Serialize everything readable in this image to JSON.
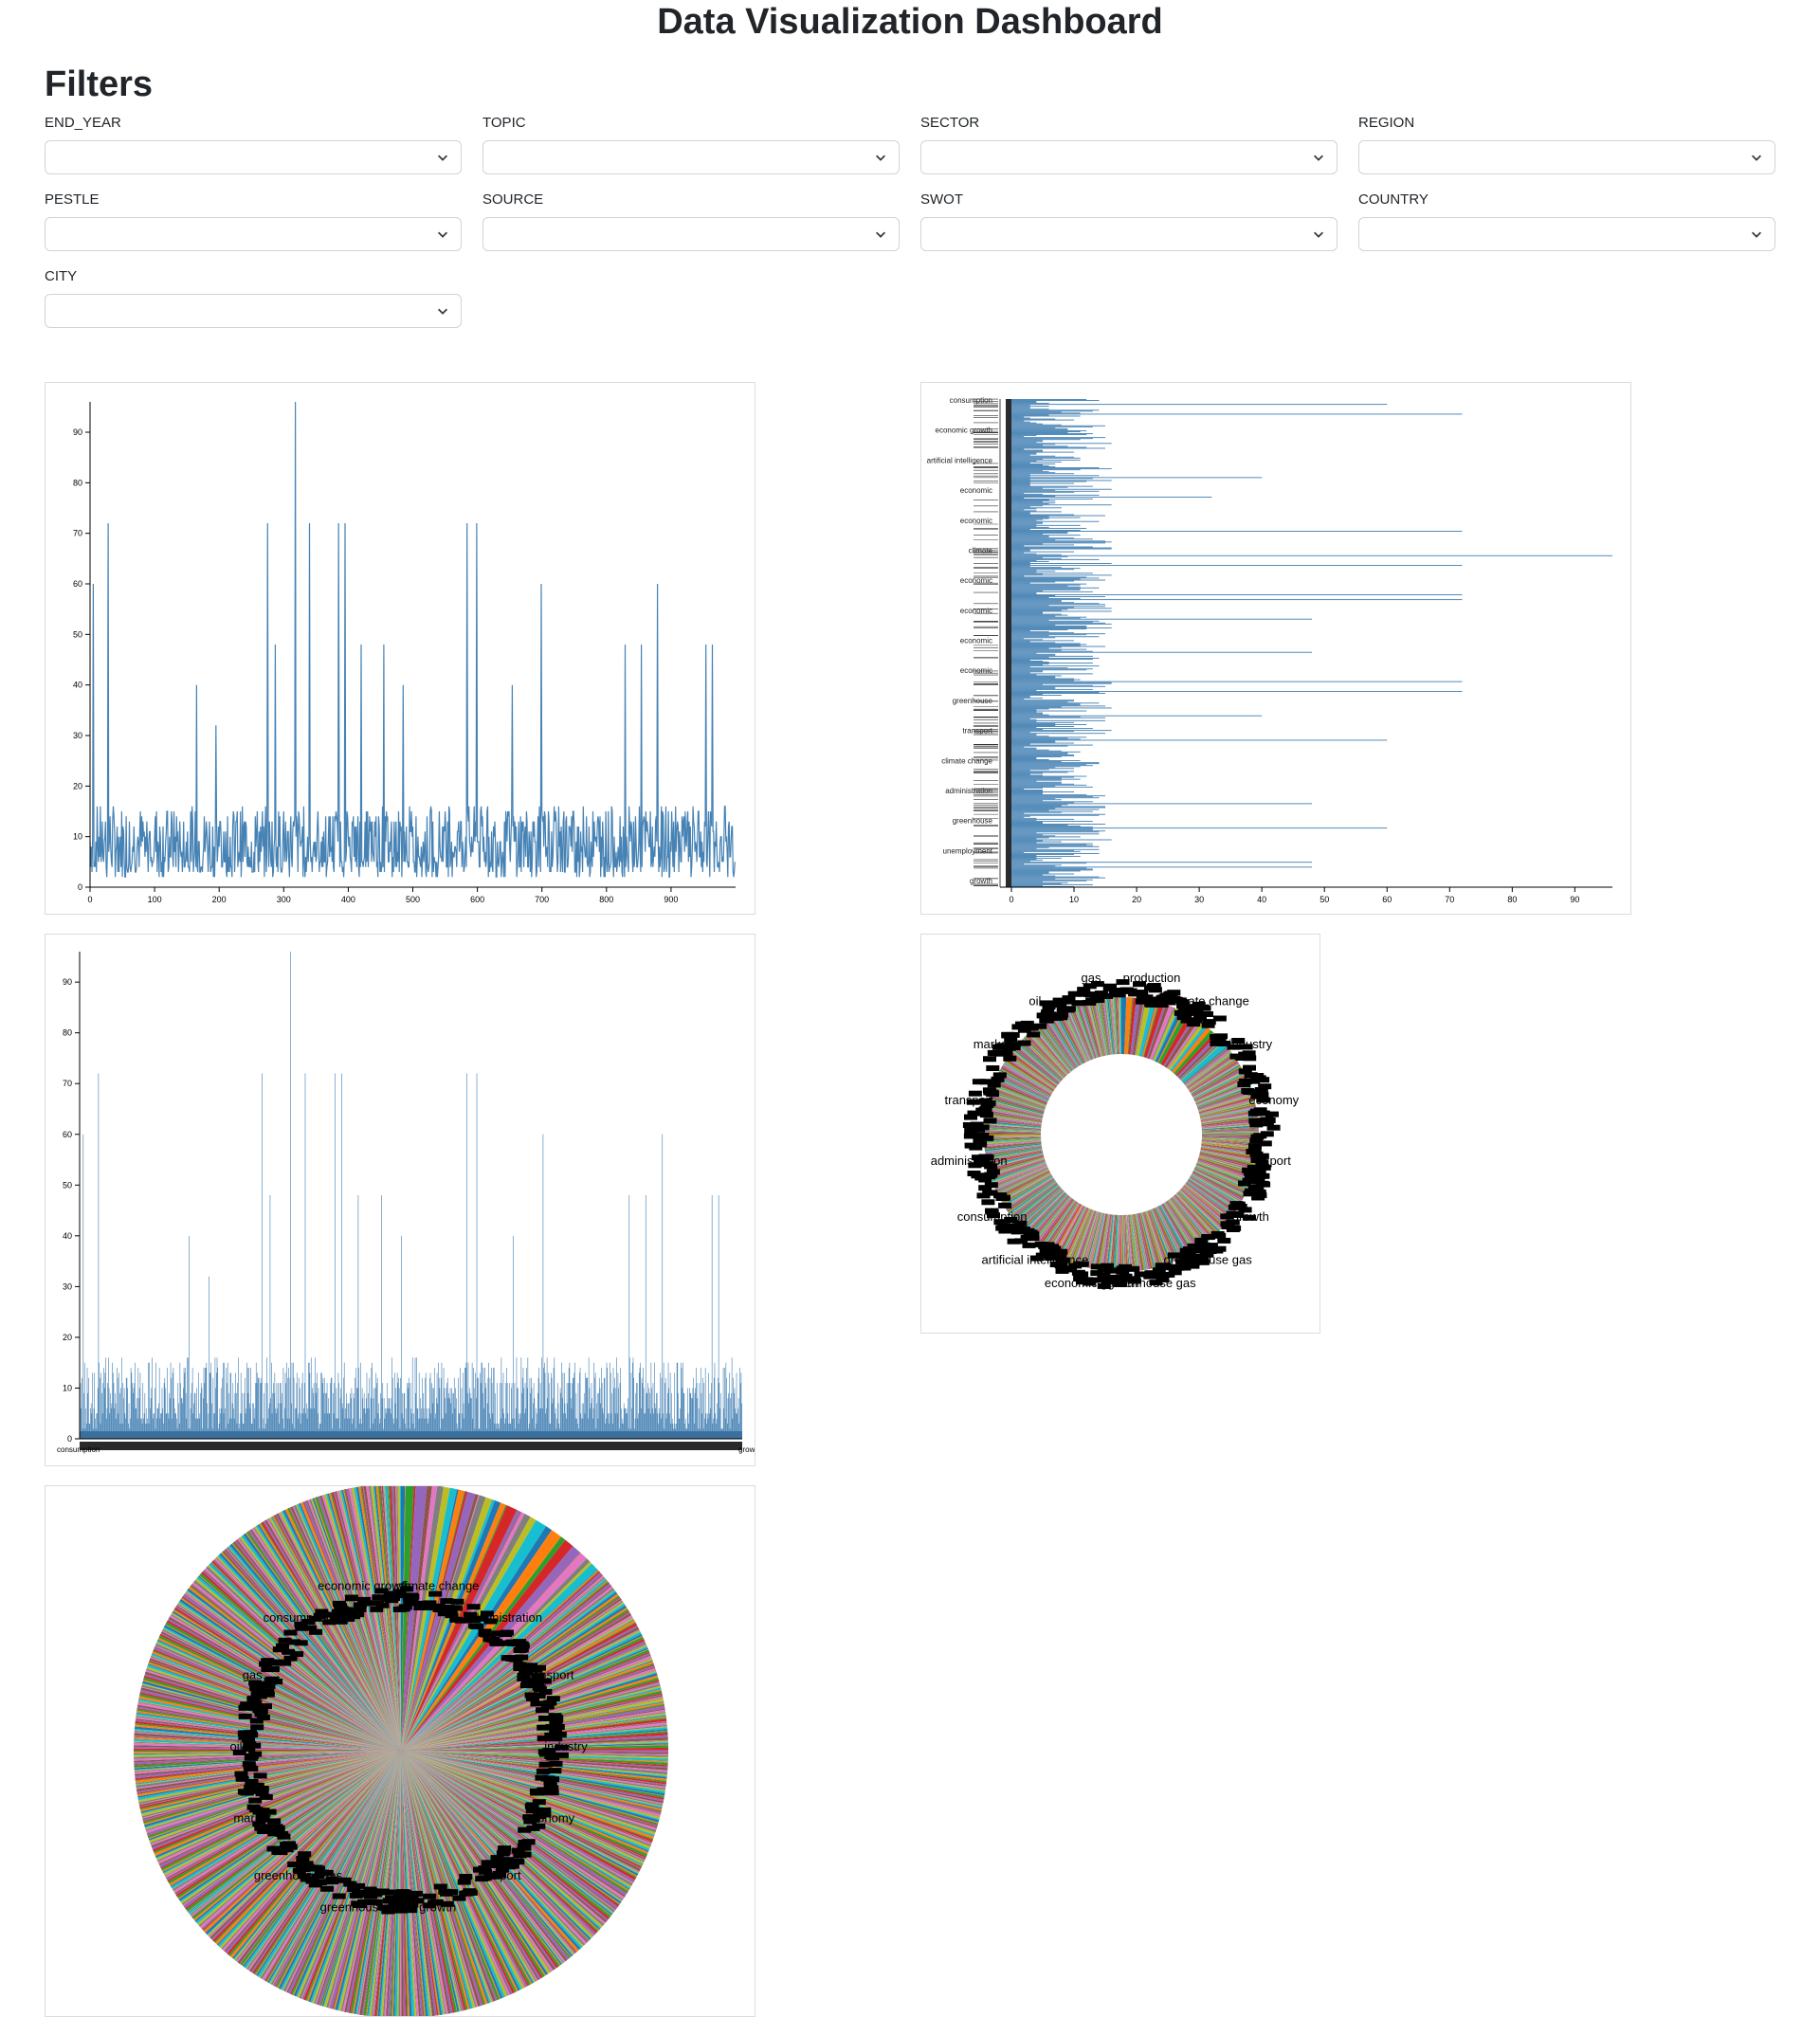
{
  "header": {
    "title": "Data Visualization Dashboard"
  },
  "filters": {
    "heading": "Filters",
    "fields": [
      {
        "label": "END_YEAR",
        "value": ""
      },
      {
        "label": "TOPIC",
        "value": ""
      },
      {
        "label": "SECTOR",
        "value": ""
      },
      {
        "label": "REGION",
        "value": ""
      },
      {
        "label": "PESTLE",
        "value": ""
      },
      {
        "label": "SOURCE",
        "value": ""
      },
      {
        "label": "SWOT",
        "value": ""
      },
      {
        "label": "COUNTRY",
        "value": ""
      },
      {
        "label": "CITY",
        "value": ""
      }
    ]
  },
  "colors": {
    "line": "#4682b4",
    "palette": [
      "#1f77b4",
      "#ff7f0e",
      "#2ca02c",
      "#d62728",
      "#9467bd",
      "#8c564b",
      "#e377c2",
      "#7f7f7f",
      "#bcbd22",
      "#17becf"
    ]
  },
  "chart_data": [
    {
      "type": "line",
      "name_hint": "intensity-line",
      "xlim": [
        0,
        1000
      ],
      "ylim": [
        0,
        96
      ],
      "x_ticks": [
        0,
        100,
        200,
        300,
        400,
        500,
        600,
        700,
        800,
        900
      ],
      "y_ticks": [
        0,
        10,
        20,
        30,
        40,
        50,
        60,
        70,
        80,
        90
      ],
      "peaks": [
        {
          "x": 5,
          "y": 60
        },
        {
          "x": 28,
          "y": 72
        },
        {
          "x": 165,
          "y": 40
        },
        {
          "x": 195,
          "y": 32
        },
        {
          "x": 275,
          "y": 72
        },
        {
          "x": 287,
          "y": 48
        },
        {
          "x": 318,
          "y": 96
        },
        {
          "x": 340,
          "y": 72
        },
        {
          "x": 385,
          "y": 72
        },
        {
          "x": 395,
          "y": 72
        },
        {
          "x": 420,
          "y": 48
        },
        {
          "x": 455,
          "y": 48
        },
        {
          "x": 485,
          "y": 40
        },
        {
          "x": 585,
          "y": 72
        },
        {
          "x": 600,
          "y": 72
        },
        {
          "x": 655,
          "y": 40
        },
        {
          "x": 700,
          "y": 60
        },
        {
          "x": 830,
          "y": 48
        },
        {
          "x": 855,
          "y": 48
        },
        {
          "x": 880,
          "y": 60
        },
        {
          "x": 955,
          "y": 48
        },
        {
          "x": 965,
          "y": 48
        },
        {
          "x": 985,
          "y": 16
        }
      ],
      "baseline_range": [
        2,
        16
      ]
    },
    {
      "type": "bar",
      "orientation": "horizontal",
      "xlim": [
        0,
        96
      ],
      "x_ticks": [
        0,
        10,
        20,
        30,
        40,
        50,
        60,
        70,
        80,
        90
      ],
      "category_labels": [
        "consumption",
        "economic growth",
        "artificial intelligence",
        "economic",
        "economic",
        "climate",
        "economic",
        "economic",
        "economic",
        "economic",
        "greenhouse",
        "transport",
        "climate change",
        "administration",
        "greenhouse",
        "unemployment",
        "growth"
      ],
      "peaks": [
        {
          "row": 0.01,
          "value": 60
        },
        {
          "row": 0.03,
          "value": 72
        },
        {
          "row": 0.16,
          "value": 40
        },
        {
          "row": 0.2,
          "value": 32
        },
        {
          "row": 0.27,
          "value": 72
        },
        {
          "row": 0.32,
          "value": 96
        },
        {
          "row": 0.34,
          "value": 72
        },
        {
          "row": 0.4,
          "value": 72
        },
        {
          "row": 0.41,
          "value": 72
        },
        {
          "row": 0.45,
          "value": 48
        },
        {
          "row": 0.52,
          "value": 48
        },
        {
          "row": 0.58,
          "value": 72
        },
        {
          "row": 0.6,
          "value": 72
        },
        {
          "row": 0.65,
          "value": 40
        },
        {
          "row": 0.7,
          "value": 60
        },
        {
          "row": 0.83,
          "value": 48
        },
        {
          "row": 0.88,
          "value": 60
        },
        {
          "row": 0.95,
          "value": 48
        },
        {
          "row": 0.96,
          "value": 48
        }
      ],
      "baseline_range": [
        2,
        16
      ]
    },
    {
      "type": "bar",
      "orientation": "vertical",
      "ylim": [
        0,
        96
      ],
      "y_ticks": [
        0,
        10,
        20,
        30,
        40,
        50,
        60,
        70,
        80,
        90
      ],
      "first_category": "consumption",
      "last_category": "growth",
      "peaks": [
        {
          "x": 0.005,
          "y": 60
        },
        {
          "x": 0.028,
          "y": 72
        },
        {
          "x": 0.165,
          "y": 40
        },
        {
          "x": 0.195,
          "y": 32
        },
        {
          "x": 0.275,
          "y": 72
        },
        {
          "x": 0.287,
          "y": 48
        },
        {
          "x": 0.318,
          "y": 96
        },
        {
          "x": 0.34,
          "y": 72
        },
        {
          "x": 0.385,
          "y": 72
        },
        {
          "x": 0.395,
          "y": 72
        },
        {
          "x": 0.42,
          "y": 48
        },
        {
          "x": 0.455,
          "y": 48
        },
        {
          "x": 0.485,
          "y": 40
        },
        {
          "x": 0.585,
          "y": 72
        },
        {
          "x": 0.6,
          "y": 72
        },
        {
          "x": 0.655,
          "y": 40
        },
        {
          "x": 0.7,
          "y": 60
        },
        {
          "x": 0.83,
          "y": 48
        },
        {
          "x": 0.855,
          "y": 48
        },
        {
          "x": 0.88,
          "y": 60
        },
        {
          "x": 0.955,
          "y": 48
        },
        {
          "x": 0.965,
          "y": 48
        },
        {
          "x": 0.985,
          "y": 16
        }
      ],
      "baseline_range": [
        2,
        16
      ]
    },
    {
      "type": "pie",
      "variant": "donut",
      "slice_count": 1000,
      "labels": [
        "production",
        "climate change",
        "industry",
        "economy",
        "export",
        "growth",
        "greenhouse gas",
        "greenhouse gas",
        "economic growth",
        "artificial intelligence",
        "consumption",
        "administration",
        "transport",
        "market",
        "oil",
        "gas"
      ]
    },
    {
      "type": "pie",
      "slice_count": 1000,
      "labels": [
        "climate change",
        "administration",
        "transport",
        "industry",
        "economy",
        "export",
        "growth",
        "greenhouse gas",
        "greenhouse gas",
        "market",
        "oil",
        "gas",
        "consumption",
        "economic growth"
      ]
    }
  ]
}
